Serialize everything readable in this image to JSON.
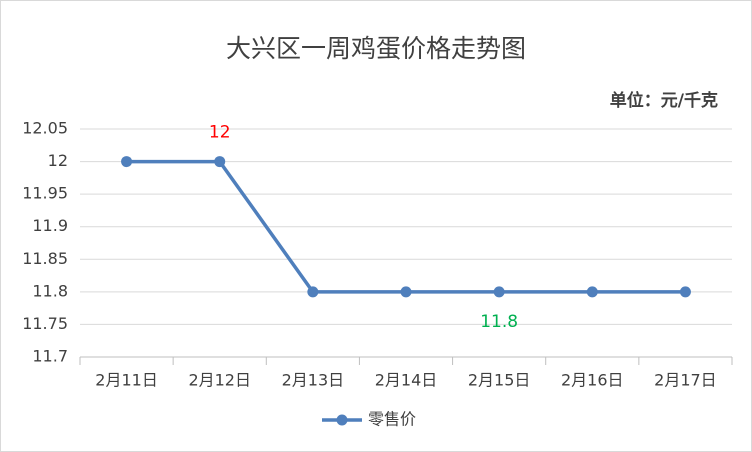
{
  "chart_data": {
    "type": "line",
    "title": "大兴区一周鸡蛋价格走势图",
    "unit_note": "单位：元/千克",
    "categories": [
      "2月11日",
      "2月12日",
      "2月13日",
      "2月14日",
      "2月15日",
      "2月16日",
      "2月17日"
    ],
    "series": [
      {
        "name": "零售价",
        "color": "#4f7fbc",
        "values": [
          12,
          12,
          11.8,
          11.8,
          11.8,
          11.8,
          11.8
        ],
        "value_labels": [
          null,
          "12",
          null,
          null,
          "11.8",
          null,
          null
        ],
        "value_label_colors": [
          null,
          "#ff0000",
          null,
          null,
          "#00b050",
          null,
          null
        ]
      }
    ],
    "ylim": [
      11.7,
      12.05
    ],
    "yticks": [
      11.7,
      11.75,
      11.8,
      11.85,
      11.9,
      11.95,
      12,
      12.05
    ],
    "grid": true,
    "legend": "bottom"
  }
}
